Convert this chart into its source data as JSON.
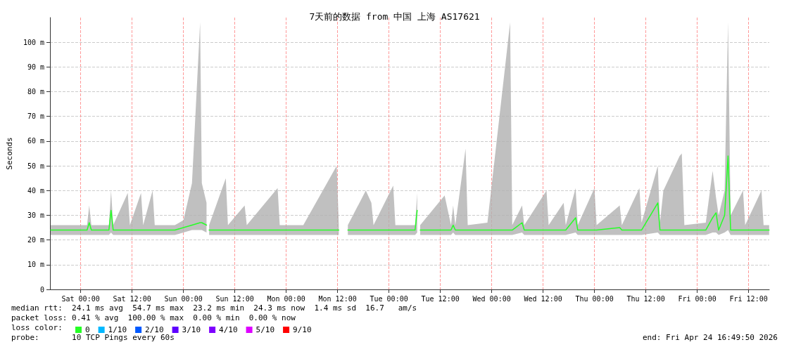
{
  "chart_data": {
    "type": "line",
    "title": "7天前的数据 from 中国 上海 AS17621",
    "ylabel": "Seconds",
    "legend_title": "loss color:",
    "annotations": [
      "median rtt:  24.1 ms avg  54.7 ms max  23.2 ms min  24.3 ms now  1.4 ms sd  16.7   am/s",
      "packet loss: 0.41 % avg  100.00 % max  0.00 % min  0.00 % now",
      "probe:       10 TCP Pings every 60s",
      "end: Fri Apr 24 16:49:50 2026"
    ],
    "x": [
      "2026-04-17T17:00",
      "2026-04-17T21:00",
      "2026-04-18T01:30",
      "2026-04-18T02:00",
      "2026-04-18T02:30",
      "2026-04-18T06:36",
      "2026-04-18T07:06",
      "2026-04-18T07:36",
      "2026-04-18T11:00",
      "2026-04-18T11:30",
      "2026-04-18T14:06",
      "2026-04-18T14:36",
      "2026-04-18T16:48",
      "2026-04-18T17:18",
      "2026-04-18T22:00",
      "2026-04-19T00:00",
      "2026-04-19T02:00",
      "2026-04-19T03:54",
      "2026-04-19T04:18",
      "2026-04-19T05:24",
      "2026-04-19T05:36",
      "2026-04-19T06:00",
      "2026-04-19T09:54",
      "2026-04-19T10:24",
      "2026-04-19T14:18",
      "2026-04-19T14:48",
      "2026-04-19T22:00",
      "2026-04-19T22:30",
      "2026-04-20T04:00",
      "2026-04-20T11:48",
      "2026-04-20T12:18",
      "2026-04-20T14:00",
      "2026-04-20T14:24",
      "2026-04-20T18:36",
      "2026-04-20T19:54",
      "2026-04-20T20:24",
      "2026-04-21T01:00",
      "2026-04-21T01:30",
      "2026-04-21T06:06",
      "2026-04-21T06:36",
      "2026-04-21T06:54",
      "2026-04-21T07:18",
      "2026-04-21T13:00",
      "2026-04-21T14:30",
      "2026-04-21T15:00",
      "2026-04-21T15:30",
      "2026-04-21T17:54",
      "2026-04-21T18:24",
      "2026-04-21T23:00",
      "2026-04-22T04:18",
      "2026-04-22T04:48",
      "2026-04-22T07:06",
      "2026-04-22T07:36",
      "2026-04-22T12:48",
      "2026-04-22T13:18",
      "2026-04-22T16:48",
      "2026-04-22T17:18",
      "2026-04-22T19:36",
      "2026-04-22T20:06",
      "2026-04-23T00:00",
      "2026-04-23T00:30",
      "2026-04-23T05:54",
      "2026-04-23T06:24",
      "2026-04-23T10:30",
      "2026-04-23T11:00",
      "2026-04-23T14:48",
      "2026-04-23T15:18",
      "2026-04-23T16:06",
      "2026-04-23T19:54",
      "2026-04-23T20:24",
      "2026-04-23T21:00",
      "2026-04-24T02:00",
      "2026-04-24T03:36",
      "2026-04-24T04:24",
      "2026-04-24T05:00",
      "2026-04-24T06:24",
      "2026-04-24T07:12",
      "2026-04-24T07:48",
      "2026-04-24T10:42",
      "2026-04-24T11:12",
      "2026-04-24T15:00",
      "2026-04-24T15:30",
      "2026-04-24T16:48"
    ],
    "series": [
      {
        "name": "0",
        "color": "#26ff26",
        "values": [
          24,
          24,
          24,
          27,
          24,
          24,
          32,
          24,
          24,
          24,
          24,
          24,
          24,
          24,
          24,
          25,
          26,
          27,
          27,
          26,
          null,
          24,
          24,
          24,
          24,
          24,
          24,
          24,
          24,
          24,
          24,
          null,
          24,
          24,
          24,
          24,
          24,
          24,
          24,
          32,
          null,
          24,
          24,
          24,
          26,
          24,
          24,
          24,
          24,
          24,
          24,
          27,
          24,
          24,
          24,
          24,
          24,
          29,
          24,
          24,
          24,
          25,
          24,
          24,
          24,
          35,
          24,
          24,
          24,
          24,
          24,
          24,
          29,
          31,
          24,
          30,
          54,
          24,
          24,
          24,
          24,
          24,
          24
        ],
        "lower": [
          22,
          22,
          22,
          22,
          22,
          22,
          23,
          22,
          22,
          22,
          22,
          22,
          22,
          22,
          22,
          23,
          24,
          24,
          24,
          23,
          null,
          22,
          22,
          22,
          22,
          22,
          22,
          22,
          22,
          22,
          22,
          null,
          22,
          22,
          22,
          22,
          22,
          22,
          22,
          23,
          null,
          22,
          22,
          22,
          23,
          22,
          22,
          22,
          22,
          22,
          22,
          23,
          22,
          22,
          22,
          22,
          22,
          23,
          22,
          22,
          22,
          22,
          22,
          22,
          22,
          23,
          22,
          22,
          22,
          22,
          22,
          22,
          23,
          23,
          22,
          23,
          24,
          22,
          22,
          22,
          22,
          22,
          22
        ],
        "upper": [
          26,
          26,
          26,
          34,
          26,
          26,
          40,
          26,
          39,
          26,
          39,
          26,
          40,
          26,
          26,
          28,
          43,
          108,
          43,
          35,
          null,
          26,
          45,
          26,
          34,
          26,
          41,
          26,
          26,
          50,
          26,
          null,
          26,
          40,
          35,
          26,
          42,
          26,
          26,
          39,
          null,
          26,
          38,
          26,
          34,
          26,
          57,
          26,
          27,
          108,
          26,
          34,
          26,
          40,
          26,
          35,
          26,
          41,
          26,
          41,
          26,
          34,
          26,
          41,
          27,
          50,
          27,
          40,
          54,
          55,
          26,
          27,
          48,
          37,
          30,
          40,
          108,
          30,
          40,
          26,
          40,
          26,
          26
        ]
      },
      {
        "name": "1/10",
        "color": "#00b8ff",
        "values": [
          null,
          null,
          null,
          null,
          null,
          null,
          null,
          null,
          null,
          null,
          null,
          null,
          null,
          null,
          null,
          null,
          null,
          null,
          null,
          null,
          null,
          null,
          null,
          null,
          null,
          null,
          null,
          null,
          null,
          null,
          null,
          null,
          null,
          null,
          null,
          null,
          null,
          null,
          null,
          null,
          null,
          null,
          null,
          null,
          null,
          null,
          null,
          null,
          null,
          null,
          null,
          null,
          null,
          null,
          null,
          null,
          null,
          null,
          null,
          null,
          null,
          null,
          null,
          null,
          null,
          null,
          null,
          null,
          null,
          null,
          null,
          null,
          null,
          null,
          null,
          null,
          null,
          null,
          null,
          null,
          null,
          null,
          null
        ]
      },
      {
        "name": "2/10",
        "color": "#0059ff",
        "values": [
          null,
          null,
          null,
          null,
          null,
          null,
          null,
          null,
          null,
          null,
          null,
          null,
          null,
          null,
          null,
          null,
          null,
          null,
          null,
          null,
          null,
          null,
          null,
          null,
          null,
          null,
          null,
          null,
          null,
          null,
          null,
          null,
          null,
          null,
          null,
          null,
          null,
          null,
          null,
          null,
          null,
          null,
          null,
          null,
          null,
          null,
          null,
          null,
          null,
          null,
          null,
          null,
          null,
          null,
          null,
          null,
          null,
          null,
          null,
          null,
          null,
          null,
          null,
          null,
          null,
          null,
          null,
          null,
          null,
          null,
          null,
          null,
          null,
          null,
          null,
          null,
          null,
          null,
          null,
          null,
          null,
          null,
          null
        ]
      },
      {
        "name": "3/10",
        "color": "#5e00ff",
        "values": [
          null,
          null,
          null,
          null,
          null,
          null,
          null,
          null,
          null,
          null,
          null,
          null,
          null,
          null,
          null,
          null,
          null,
          null,
          null,
          null,
          null,
          null,
          null,
          null,
          null,
          null,
          null,
          null,
          null,
          null,
          null,
          null,
          null,
          null,
          null,
          null,
          null,
          null,
          null,
          null,
          null,
          null,
          null,
          null,
          null,
          null,
          null,
          null,
          null,
          null,
          null,
          null,
          null,
          null,
          null,
          null,
          null,
          null,
          null,
          null,
          null,
          null,
          null,
          null,
          null,
          null,
          null,
          null,
          null,
          null,
          null,
          null,
          null,
          null,
          null,
          null,
          null,
          null,
          null,
          null,
          null,
          null,
          null
        ]
      },
      {
        "name": "4/10",
        "color": "#7e00ff",
        "values": [
          null,
          null,
          null,
          null,
          null,
          null,
          null,
          null,
          null,
          null,
          null,
          null,
          null,
          null,
          null,
          null,
          null,
          null,
          null,
          null,
          null,
          null,
          null,
          null,
          null,
          null,
          null,
          null,
          null,
          null,
          null,
          null,
          null,
          null,
          null,
          null,
          null,
          null,
          null,
          null,
          null,
          null,
          null,
          null,
          null,
          null,
          null,
          null,
          null,
          null,
          null,
          null,
          null,
          null,
          null,
          null,
          null,
          null,
          null,
          null,
          null,
          null,
          null,
          null,
          null,
          null,
          null,
          null,
          null,
          null,
          null,
          null,
          null,
          null,
          null,
          null,
          null,
          null,
          null,
          null,
          null,
          null,
          null
        ]
      },
      {
        "name": "5/10",
        "color": "#dd00ff",
        "values": [
          null,
          null,
          null,
          null,
          null,
          null,
          null,
          null,
          null,
          null,
          null,
          null,
          null,
          null,
          null,
          null,
          null,
          null,
          null,
          null,
          null,
          null,
          null,
          null,
          null,
          null,
          null,
          null,
          null,
          null,
          null,
          null,
          null,
          null,
          null,
          null,
          null,
          null,
          null,
          null,
          null,
          null,
          null,
          null,
          null,
          null,
          null,
          null,
          null,
          null,
          null,
          null,
          null,
          null,
          null,
          null,
          null,
          null,
          null,
          null,
          null,
          null,
          null,
          null,
          null,
          null,
          null,
          null,
          null,
          null,
          null,
          null,
          null,
          null,
          null,
          null,
          null,
          null,
          null,
          null,
          null,
          null,
          null
        ]
      },
      {
        "name": "9/10",
        "color": "#ff0000",
        "values": [
          null,
          null,
          null,
          null,
          null,
          null,
          null,
          null,
          null,
          null,
          null,
          null,
          null,
          null,
          null,
          null,
          null,
          null,
          null,
          null,
          null,
          null,
          null,
          null,
          null,
          null,
          null,
          null,
          null,
          null,
          null,
          null,
          null,
          null,
          null,
          null,
          null,
          null,
          null,
          null,
          null,
          null,
          null,
          null,
          null,
          null,
          null,
          null,
          null,
          null,
          null,
          null,
          null,
          null,
          null,
          null,
          null,
          null,
          null,
          null,
          null,
          null,
          null,
          null,
          null,
          null,
          null,
          null,
          null,
          null,
          null,
          null,
          null,
          null,
          null,
          null,
          null,
          null,
          null,
          null,
          null,
          null,
          null
        ]
      }
    ],
    "xlim": [
      "2026-04-17T16:50",
      "2026-04-24T16:50"
    ],
    "xticks": [
      {
        "value": "2026-04-18T00:00",
        "label": "Sat 00:00"
      },
      {
        "value": "2026-04-18T12:00",
        "label": "Sat 12:00"
      },
      {
        "value": "2026-04-19T00:00",
        "label": "Sun 00:00"
      },
      {
        "value": "2026-04-19T12:00",
        "label": "Sun 12:00"
      },
      {
        "value": "2026-04-20T00:00",
        "label": "Mon 00:00"
      },
      {
        "value": "2026-04-20T12:00",
        "label": "Mon 12:00"
      },
      {
        "value": "2026-04-21T00:00",
        "label": "Tue 00:00"
      },
      {
        "value": "2026-04-21T12:00",
        "label": "Tue 12:00"
      },
      {
        "value": "2026-04-22T00:00",
        "label": "Wed 00:00"
      },
      {
        "value": "2026-04-22T12:00",
        "label": "Wed 12:00"
      },
      {
        "value": "2026-04-23T00:00",
        "label": "Thu 00:00"
      },
      {
        "value": "2026-04-23T12:00",
        "label": "Thu 12:00"
      },
      {
        "value": "2026-04-24T00:00",
        "label": "Fri 00:00"
      },
      {
        "value": "2026-04-24T12:00",
        "label": "Fri 12:00"
      }
    ],
    "ylim": [
      0,
      110
    ],
    "yticks": [
      0,
      {
        "value": 10,
        "label": "10 m"
      },
      {
        "value": 20,
        "label": "20 m"
      },
      {
        "value": 30,
        "label": "30 m"
      },
      {
        "value": 40,
        "label": "40 m"
      },
      {
        "value": 50,
        "label": "50 m"
      },
      {
        "value": 60,
        "label": "60 m"
      },
      {
        "value": 70,
        "label": "70 m"
      },
      {
        "value": 80,
        "label": "80 m"
      },
      {
        "value": 90,
        "label": "90 m"
      },
      {
        "value": 100,
        "label": "100 m"
      }
    ],
    "grid": true,
    "legend": "bottom left",
    "marker": "none",
    "line_style": "solid"
  }
}
